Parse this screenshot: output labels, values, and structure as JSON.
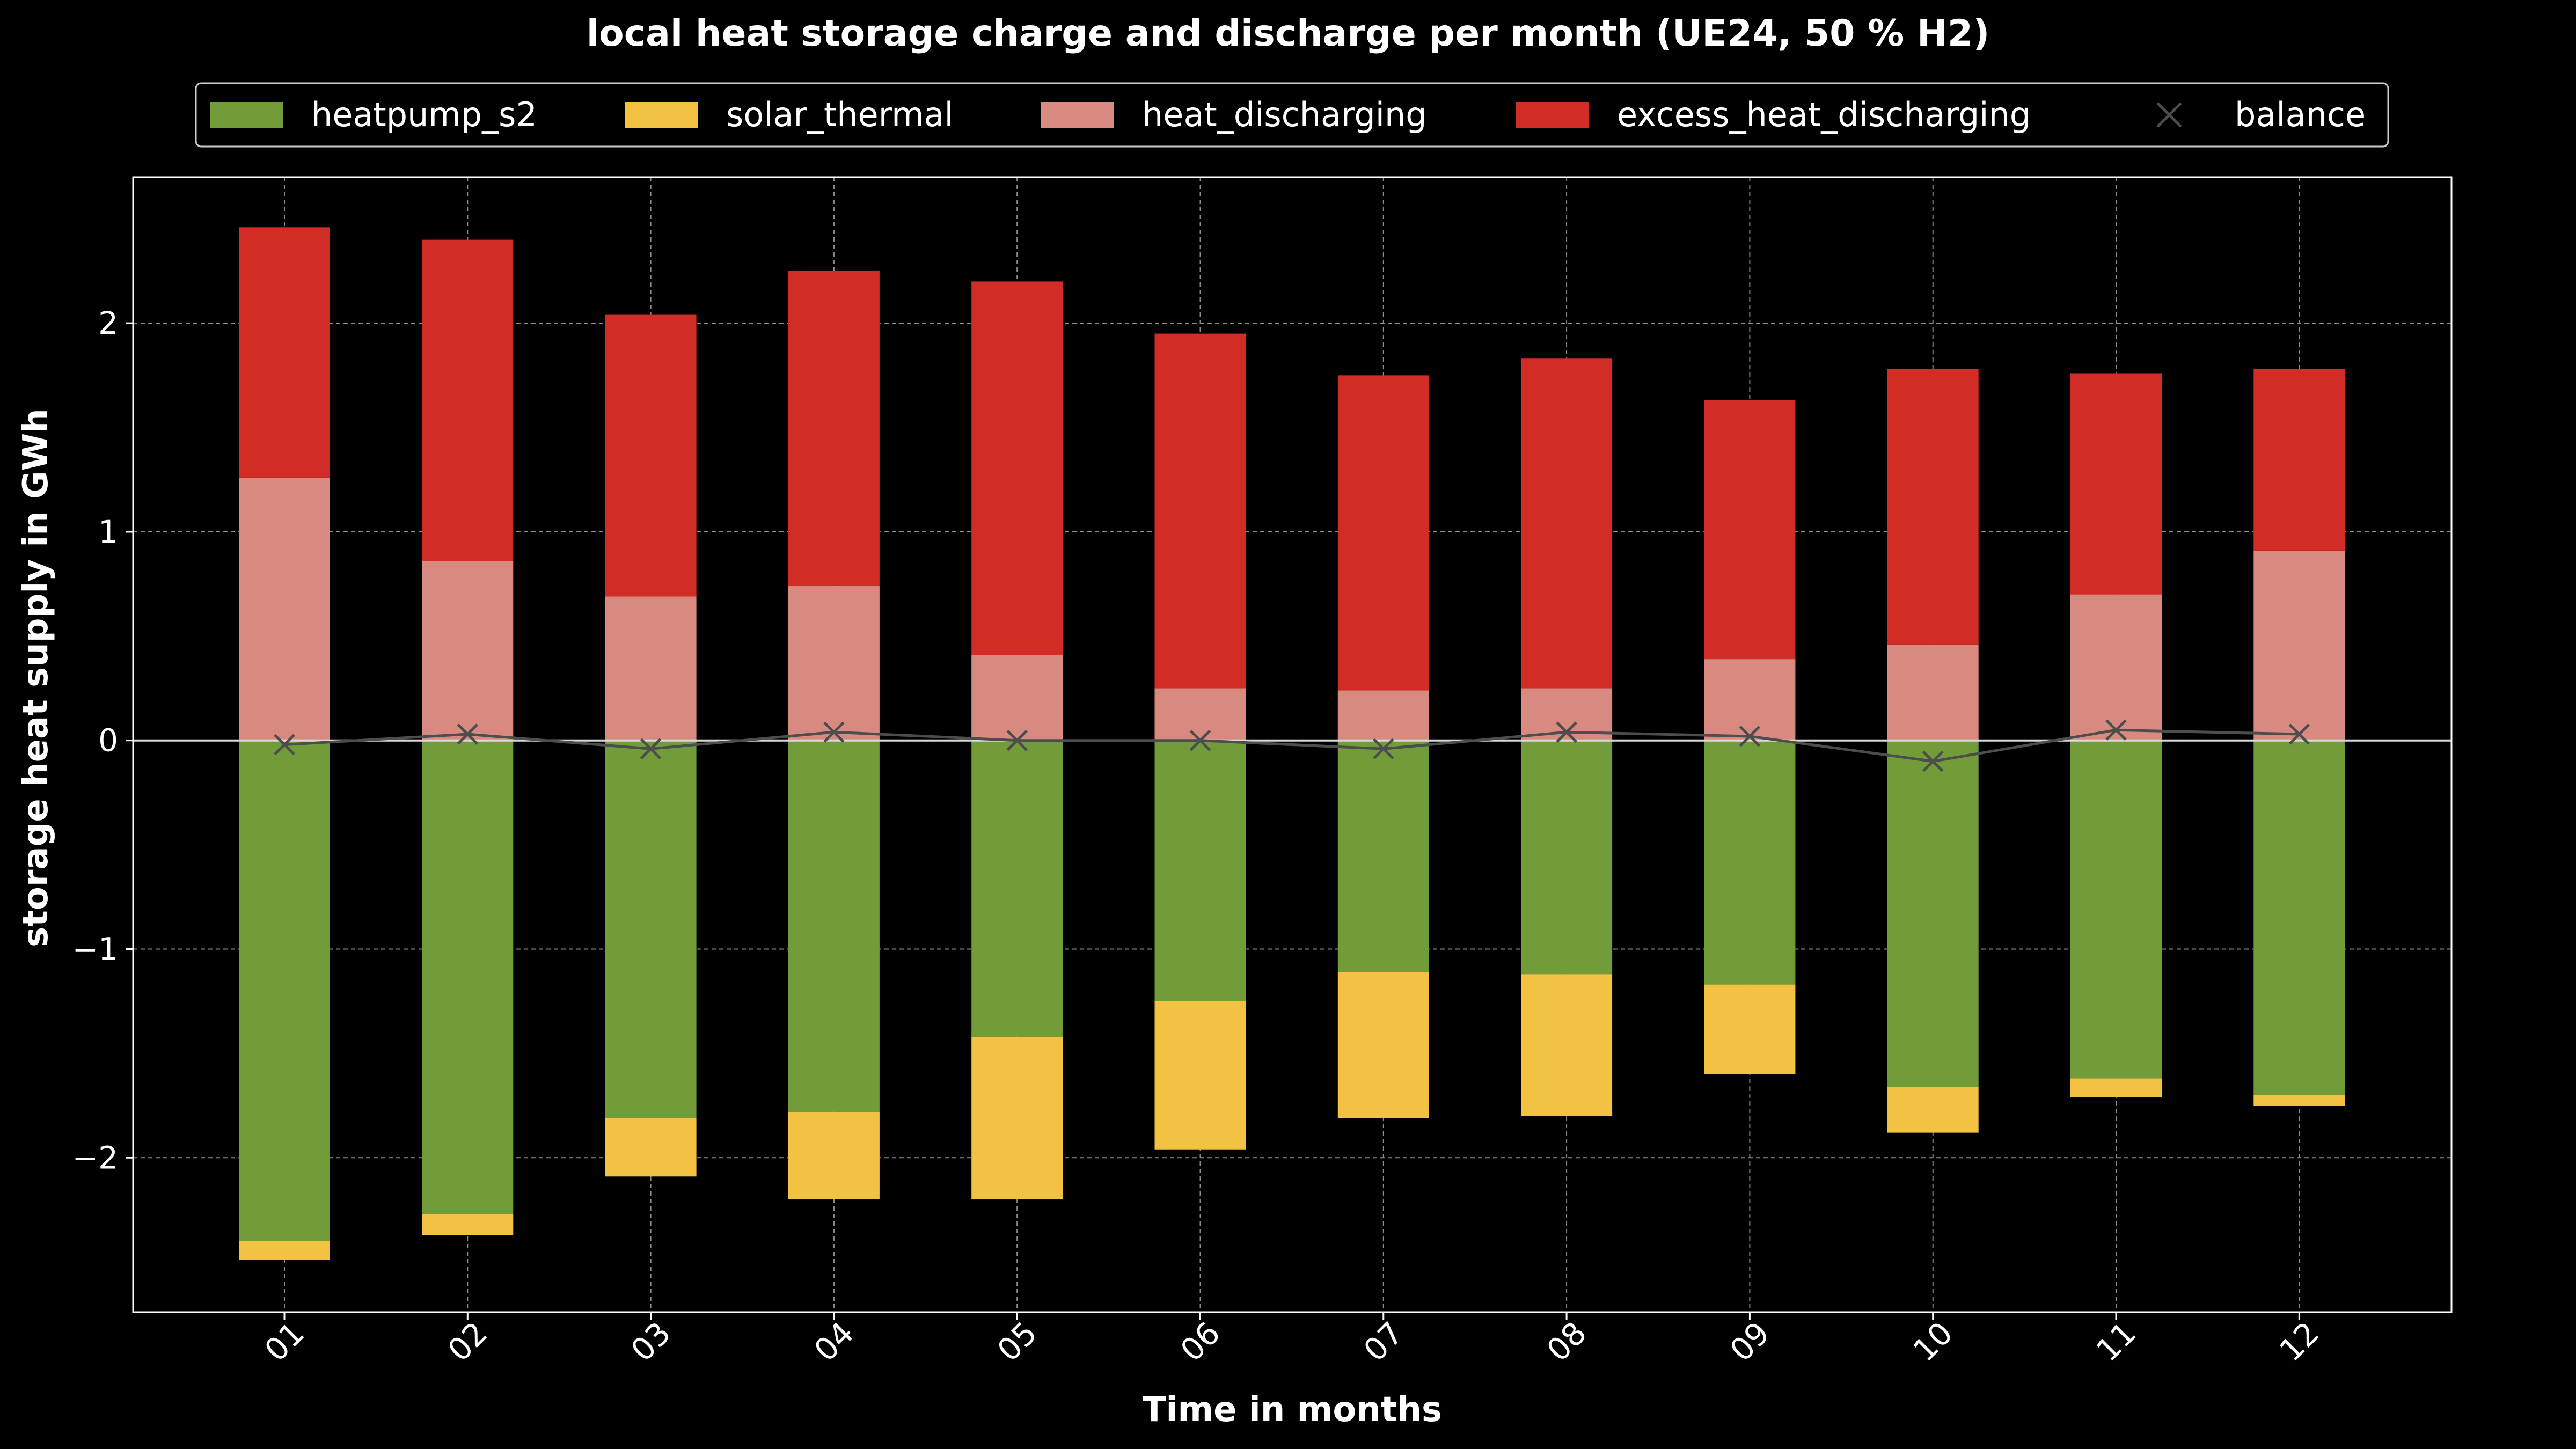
{
  "chart_data": {
    "type": "bar",
    "stacked": true,
    "title": "local heat storage charge and discharge per month (UE24, 50 % H2)",
    "xlabel": "Time in months",
    "ylabel": "storage heat supply in GWh",
    "categories": [
      "01",
      "02",
      "03",
      "04",
      "05",
      "06",
      "07",
      "08",
      "09",
      "10",
      "11",
      "12"
    ],
    "ylim": [
      -2.74,
      2.7
    ],
    "yticks": [
      -2,
      -1,
      0,
      1,
      2
    ],
    "ytick_labels": [
      "−2",
      "−1",
      "0",
      "1",
      "2"
    ],
    "grid": true,
    "legend_position": "top-center",
    "series": [
      {
        "name": "heatpump_s2",
        "color": "#729c3a",
        "values": [
          -2.4,
          -2.27,
          -1.81,
          -1.78,
          -1.42,
          -1.25,
          -1.11,
          -1.12,
          -1.17,
          -1.66,
          -1.62,
          -1.7
        ]
      },
      {
        "name": "solar_thermal",
        "color": "#f4c242",
        "values": [
          -0.09,
          -0.1,
          -0.28,
          -0.42,
          -0.78,
          -0.71,
          -0.7,
          -0.68,
          -0.43,
          -0.22,
          -0.09,
          -0.05
        ]
      },
      {
        "name": "heat_discharging",
        "color": "#d98a80",
        "values": [
          1.26,
          0.86,
          0.69,
          0.74,
          0.41,
          0.25,
          0.24,
          0.25,
          0.39,
          0.46,
          0.7,
          0.91
        ]
      },
      {
        "name": "excess_heat_discharging",
        "color": "#d12c25",
        "values": [
          1.2,
          1.54,
          1.35,
          1.51,
          1.79,
          1.7,
          1.51,
          1.58,
          1.24,
          1.32,
          1.06,
          0.87
        ]
      }
    ],
    "balance": {
      "name": "balance",
      "color": "#4d4d4d",
      "marker": "x",
      "values": [
        -0.02,
        0.03,
        -0.04,
        0.04,
        0.0,
        0.0,
        -0.04,
        0.04,
        0.02,
        -0.1,
        0.05,
        0.03
      ]
    }
  }
}
